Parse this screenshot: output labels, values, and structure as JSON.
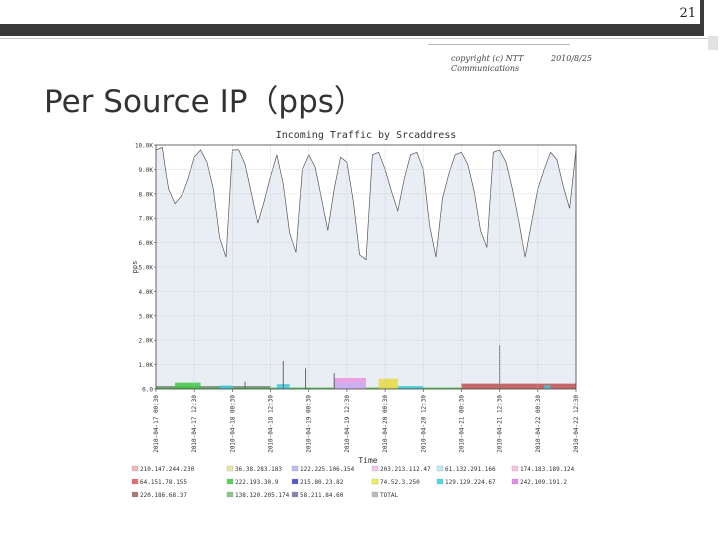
{
  "slide": {
    "number": "21",
    "copyright": "copyright (c) NTT Communications",
    "date": "2010/8/25",
    "title": "Per Source IP（pps）"
  },
  "chart_data": {
    "type": "area",
    "title": "Incoming Traffic by Srcaddress",
    "xlabel": "Time",
    "ylabel": "pps",
    "ylim": [
      0,
      10000
    ],
    "yticks": [
      0,
      1000,
      2000,
      3000,
      4000,
      5000,
      6000,
      7000,
      8000,
      9000,
      10000
    ],
    "ytick_labels": [
      "0.0",
      "1.0K",
      "2.0K",
      "3.0K",
      "4.0K",
      "5.0K",
      "6.0K",
      "7.0K",
      "8.0K",
      "9.0K",
      "10.0K"
    ],
    "xlim": [
      0,
      66
    ],
    "x_ticks": [
      {
        "x": 0,
        "label": "2010-04-17 00:30"
      },
      {
        "x": 6,
        "label": "2010-04-17 12:30"
      },
      {
        "x": 12,
        "label": "2010-04-18 00:30"
      },
      {
        "x": 18,
        "label": "2010-04-18 12:30"
      },
      {
        "x": 24,
        "label": "2010-04-19 00:30"
      },
      {
        "x": 30,
        "label": "2010-04-19 12:30"
      },
      {
        "x": 36,
        "label": "2010-04-20 00:30"
      },
      {
        "x": 42,
        "label": "2010-04-20 12:30"
      },
      {
        "x": 48,
        "label": "2010-04-21 00:30"
      },
      {
        "x": 54,
        "label": "2010-04-21 12:30"
      },
      {
        "x": 60,
        "label": "2010-04-22 00:30"
      },
      {
        "x": 66,
        "label": "2010-04-22 12:30"
      }
    ],
    "grid": true,
    "legend_position": "bottom",
    "total": {
      "name": "TOTAL",
      "x": [
        0,
        1,
        1.5,
        2,
        3,
        4,
        5,
        6,
        7,
        8,
        9,
        10,
        11,
        12,
        13,
        14,
        15,
        16,
        17,
        18,
        19,
        20,
        21,
        22,
        23,
        24,
        25,
        26,
        27,
        28,
        29,
        30,
        31,
        32,
        33,
        34,
        35,
        36,
        37,
        38,
        39,
        40,
        41,
        42,
        43,
        44,
        45,
        46,
        47,
        48,
        49,
        50,
        51,
        52,
        53,
        54,
        55,
        56,
        57,
        58,
        59,
        60,
        61,
        62,
        63,
        64,
        65,
        66
      ],
      "values": [
        9800,
        9900,
        9000,
        8200,
        7600,
        7900,
        8600,
        9500,
        9800,
        9300,
        8200,
        6200,
        5400,
        9800,
        9800,
        9200,
        8000,
        6800,
        7700,
        8700,
        9600,
        8400,
        6400,
        5600,
        9000,
        9600,
        9100,
        7800,
        6500,
        8200,
        9500,
        9300,
        7700,
        5500,
        5300,
        9600,
        9700,
        9000,
        8100,
        7300,
        8600,
        9600,
        9700,
        9000,
        6700,
        5400,
        7800,
        8800,
        9600,
        9700,
        9200,
        8100,
        6500,
        5800,
        9700,
        9800,
        9300,
        8200,
        6900,
        5400,
        6800,
        8200,
        9000,
        9700,
        9400,
        8300,
        7400,
        9800
      ]
    },
    "spikes": [
      {
        "x": 14,
        "value": 300
      },
      {
        "x": 20,
        "value": 1150
      },
      {
        "x": 23.5,
        "value": 850
      },
      {
        "x": 28,
        "value": 650
      },
      {
        "x": 54,
        "value": 1800
      }
    ],
    "series": [
      {
        "name": "210.147.244.230",
        "color": "#f2b9b9"
      },
      {
        "name": "36.38.283.183",
        "color": "#e7e7a8"
      },
      {
        "name": "122.225.106.154",
        "color": "#bcbcf0"
      },
      {
        "name": "203.213.112.47",
        "color": "#f5c3f5"
      },
      {
        "name": "61.132.291.166",
        "color": "#bfe9f7"
      },
      {
        "name": "174.183.189.124",
        "color": "#f7c5e5"
      },
      {
        "name": "64.151.78.155",
        "color": "#e07070"
      },
      {
        "name": "222.193.30.9",
        "color": "#55d455"
      },
      {
        "name": "215.80.23.82",
        "color": "#5656cc"
      },
      {
        "name": "74.52.3.250",
        "color": "#f0f055"
      },
      {
        "name": "129.129.224.67",
        "color": "#44dcdc"
      },
      {
        "name": "242.109.191.2",
        "color": "#e58ae5"
      },
      {
        "name": "220.186.68.37",
        "color": "#a87878"
      },
      {
        "name": "138.120.205.174",
        "color": "#88c888"
      },
      {
        "name": "58.211.84.60",
        "color": "#8484b0"
      },
      {
        "name": "TOTAL",
        "color": "#bbbbbb"
      }
    ],
    "colors": {
      "total_fill": "#e9edf4",
      "total_line": "#555555",
      "red_base": "#c05050",
      "green_base": "#44c444",
      "gray_base": "#7a7a7a",
      "pink": "#f090e0",
      "cyan": "#40c8d8",
      "yellow": "#e8d840",
      "lavender": "#c8b0f0"
    }
  }
}
